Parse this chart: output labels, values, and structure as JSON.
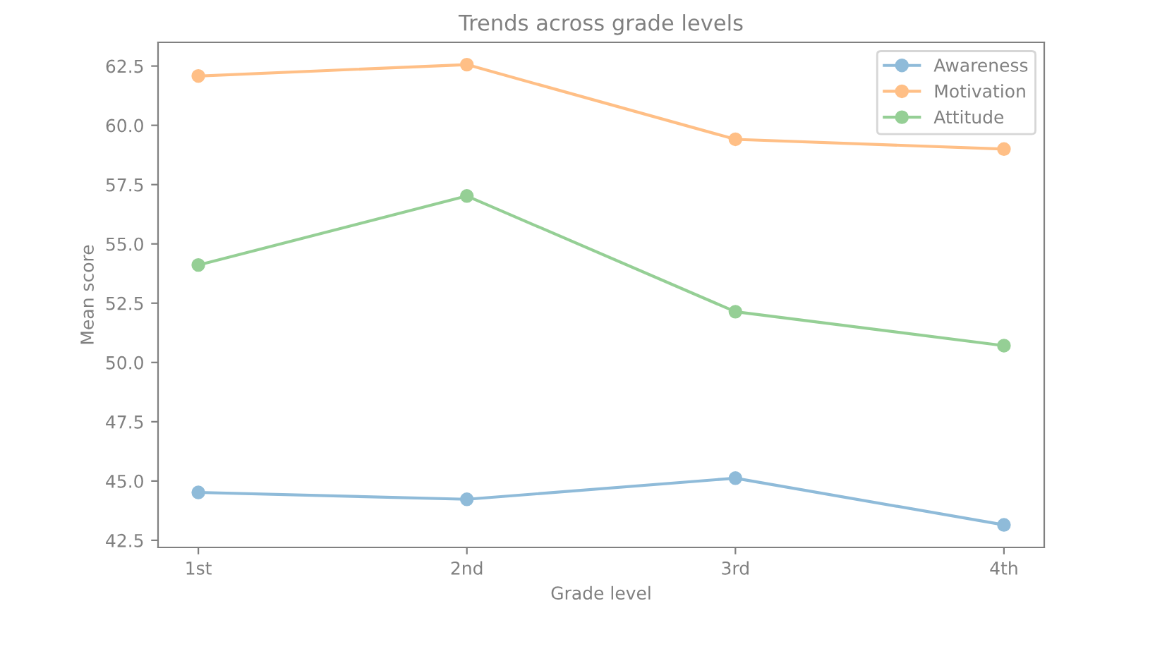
{
  "chart_data": {
    "type": "line",
    "title": "Trends across grade levels",
    "xlabel": "Grade level",
    "ylabel": "Mean score",
    "categories": [
      "1st",
      "2nd",
      "3rd",
      "4th"
    ],
    "series": [
      {
        "name": "Awareness",
        "color": "#8fbbd9",
        "values": [
          44.52,
          44.23,
          45.12,
          43.15
        ]
      },
      {
        "name": "Motivation",
        "color": "#ffbf86",
        "values": [
          62.08,
          62.56,
          59.41,
          59.0
        ]
      },
      {
        "name": "Attitude",
        "color": "#95cf95",
        "values": [
          54.11,
          57.02,
          52.14,
          50.71
        ]
      }
    ],
    "ylim": [
      42.2,
      63.5
    ],
    "yticks": [
      {
        "value": 42.5,
        "label": "42.5"
      },
      {
        "value": 45,
        "label": "45.0"
      },
      {
        "value": 47.5,
        "label": "47.5"
      },
      {
        "value": 50,
        "label": "50.0"
      },
      {
        "value": 52.5,
        "label": "52.5"
      },
      {
        "value": 55,
        "label": "55.0"
      },
      {
        "value": 57.5,
        "label": "57.5"
      },
      {
        "value": 60,
        "label": "60.0"
      },
      {
        "value": 62.5,
        "label": "62.5"
      }
    ],
    "marker": "circle",
    "line_style": "solid",
    "legend": "top right",
    "grid": false
  }
}
